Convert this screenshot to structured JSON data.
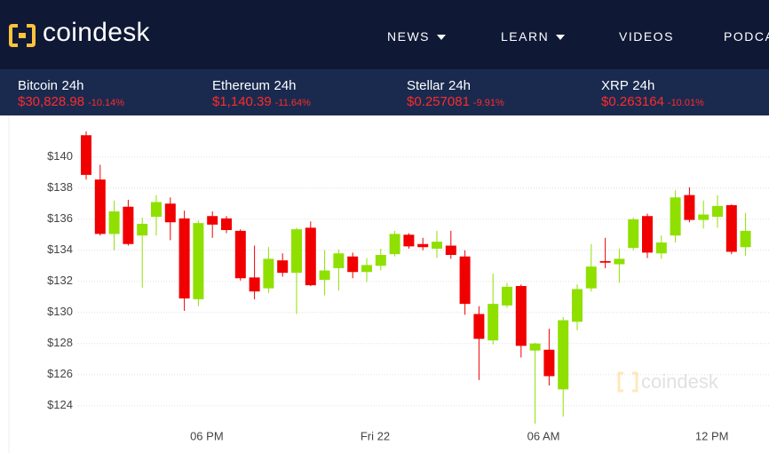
{
  "header": {
    "logo": "coindesk",
    "nav": [
      "NEWS",
      "LEARN",
      "VIDEOS",
      "PODCA"
    ]
  },
  "ticker": [
    {
      "name": "Bitcoin",
      "period": "24h",
      "price": "$30,828.98",
      "change": "-10.14%"
    },
    {
      "name": "Ethereum",
      "period": "24h",
      "price": "$1,140.39",
      "change": "-11.64%"
    },
    {
      "name": "Stellar",
      "period": "24h",
      "price": "$0.257081",
      "change": "-9.91%"
    },
    {
      "name": "XRP",
      "period": "24h",
      "price": "$0.263164",
      "change": "-10.01%"
    }
  ],
  "chart_data": {
    "type": "candlestick",
    "watermark": "coindesk",
    "categories": [
      null,
      null,
      null,
      null,
      null,
      null,
      null,
      null,
      null,
      null,
      null,
      null,
      null,
      null,
      null,
      null,
      null,
      null,
      null,
      null,
      null,
      null,
      null,
      null,
      null,
      null,
      null,
      null,
      null,
      null,
      null,
      null,
      null,
      null,
      null,
      null,
      null,
      null,
      null,
      null,
      null,
      null,
      null,
      null,
      null,
      null,
      null,
      null
    ],
    "open": [
      141.4,
      138.55,
      135.05,
      136.8,
      134.95,
      136.15,
      137.0,
      136.05,
      130.85,
      136.2,
      136.05,
      135.25,
      132.25,
      131.55,
      133.35,
      132.55,
      135.45,
      132.1,
      132.85,
      133.6,
      132.6,
      133.0,
      133.75,
      135.0,
      134.4,
      134.1,
      134.3,
      133.6,
      129.9,
      128.2,
      130.45,
      131.7,
      127.55,
      127.6,
      125.05,
      129.4,
      131.55,
      133.3,
      133.1,
      134.15,
      136.2,
      133.8,
      134.95,
      137.55,
      135.95,
      136.15,
      136.9,
      134.2
    ],
    "high": [
      141.65,
      139.5,
      137.2,
      137.25,
      136.1,
      137.55,
      137.4,
      136.55,
      135.9,
      136.5,
      136.2,
      135.35,
      134.3,
      134.2,
      133.8,
      135.45,
      135.85,
      134.0,
      134.05,
      133.85,
      133.5,
      134.1,
      135.25,
      135.1,
      134.8,
      135.25,
      135.25,
      134.0,
      130.4,
      132.5,
      131.9,
      131.8,
      128.05,
      128.95,
      129.7,
      131.8,
      134.4,
      134.8,
      134.1,
      136.1,
      136.35,
      134.95,
      137.85,
      138.05,
      137.2,
      137.55,
      136.95,
      136.4
    ],
    "low": [
      138.55,
      134.95,
      134.0,
      134.3,
      131.6,
      134.95,
      134.65,
      130.1,
      130.4,
      134.8,
      135.1,
      132.05,
      130.85,
      131.25,
      132.3,
      129.9,
      131.7,
      131.1,
      131.4,
      132.2,
      131.95,
      132.7,
      133.6,
      134.1,
      134.0,
      133.5,
      133.45,
      129.85,
      125.65,
      127.95,
      130.3,
      127.1,
      122.85,
      125.3,
      123.3,
      128.85,
      131.35,
      132.85,
      131.9,
      134.0,
      133.5,
      133.45,
      134.5,
      135.8,
      135.4,
      135.45,
      133.75,
      133.65
    ],
    "close": [
      138.85,
      135.05,
      136.5,
      134.4,
      135.7,
      137.1,
      135.8,
      130.9,
      135.75,
      135.65,
      135.3,
      132.2,
      131.35,
      133.45,
      132.55,
      135.35,
      131.75,
      132.7,
      133.8,
      132.6,
      133.05,
      133.7,
      135.05,
      134.25,
      134.2,
      134.55,
      133.7,
      130.55,
      128.3,
      130.55,
      131.65,
      127.85,
      128.0,
      125.9,
      129.5,
      131.5,
      132.95,
      133.2,
      133.45,
      135.99,
      133.85,
      134.5,
      137.4,
      135.95,
      136.3,
      136.85,
      133.9,
      135.25
    ],
    "up_color": "#8fe000",
    "down_color": "#f00000",
    "ylim": [
      122.1,
      142.1
    ],
    "yticks": [
      {
        "value": 124,
        "label": "$124"
      },
      {
        "value": 126,
        "label": "$126"
      },
      {
        "value": 128,
        "label": "$128"
      },
      {
        "value": 130,
        "label": "$130"
      },
      {
        "value": 132,
        "label": "$132"
      },
      {
        "value": 134,
        "label": "$134"
      },
      {
        "value": 136,
        "label": "$136"
      },
      {
        "value": 138,
        "label": "$138"
      },
      {
        "value": 140,
        "label": "$140"
      }
    ],
    "xticks": [
      {
        "value": 8.6,
        "label": "06 PM"
      },
      {
        "value": 20.6,
        "label": "Fri 22"
      },
      {
        "value": 32.6,
        "label": "06 AM"
      },
      {
        "value": 44.6,
        "label": "12 PM"
      }
    ],
    "grid": true
  }
}
